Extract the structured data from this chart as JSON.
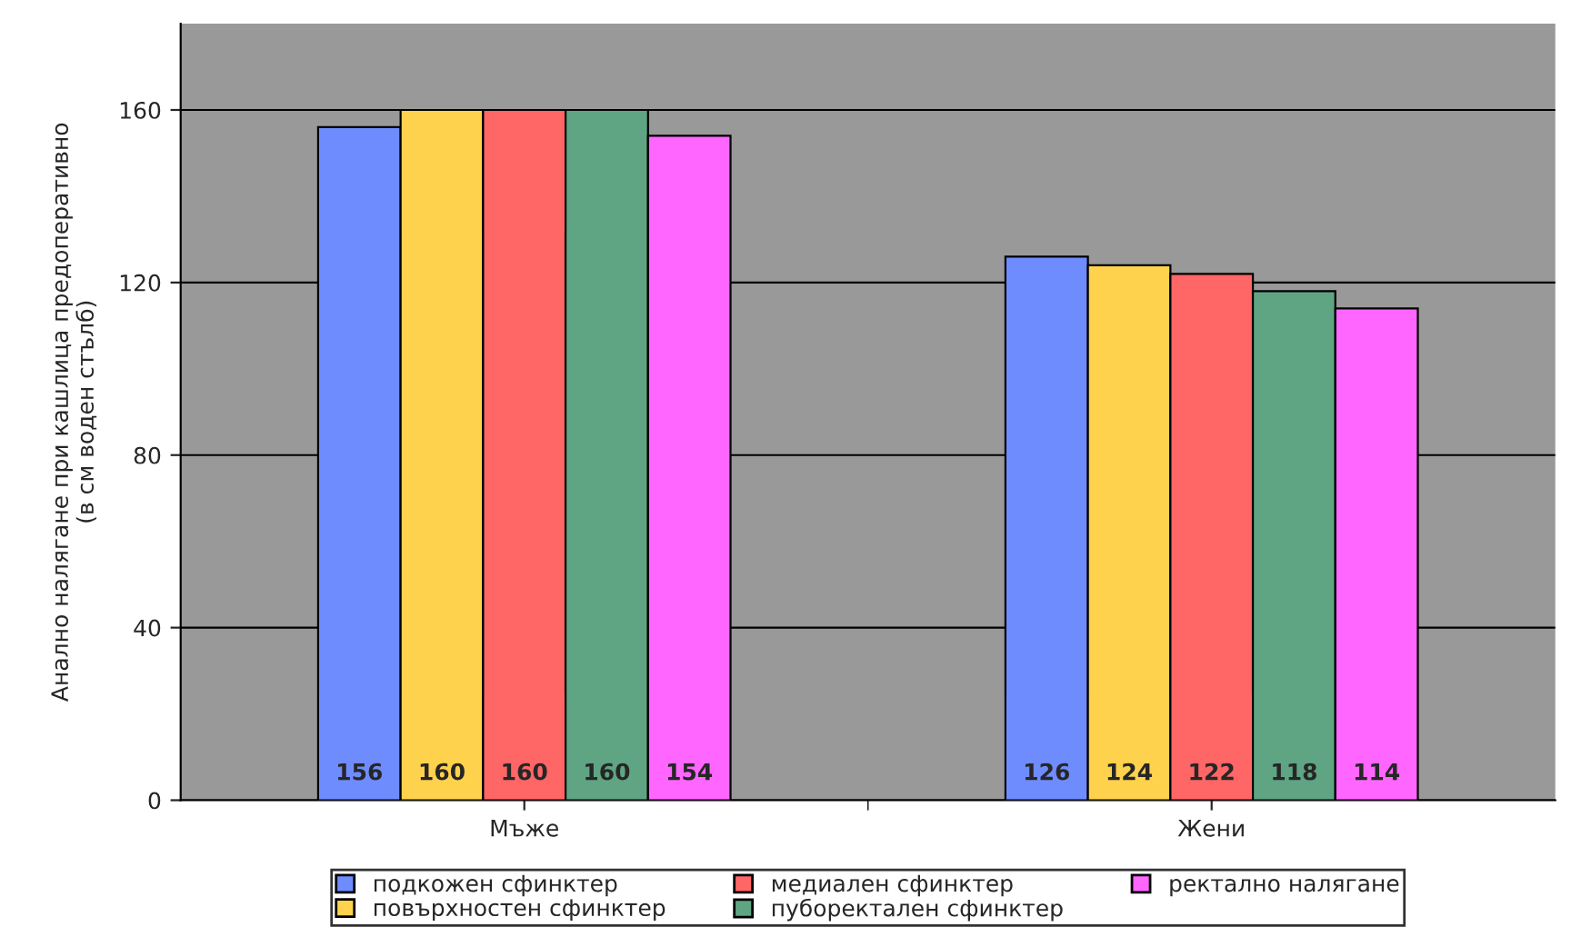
{
  "chart_data": {
    "type": "bar",
    "categories": [
      "Мъже",
      "Жени"
    ],
    "ylabel": "Анално налягане при кашлица предоперативно\n(в см воден стълб)",
    "series": [
      {
        "name": "подкожен сфинктер",
        "color": "#6f8cff",
        "values": [
          156,
          126
        ]
      },
      {
        "name": "повърхностен сфинктер",
        "color": "#ffd24d",
        "values": [
          160,
          124
        ]
      },
      {
        "name": "медиален сфинктер",
        "color": "#ff6666",
        "values": [
          160,
          122
        ]
      },
      {
        "name": "пуборектален сфинктер",
        "color": "#5fa584",
        "values": [
          160,
          118
        ]
      },
      {
        "name": "ректално налягане",
        "color": "#ff66ff",
        "values": [
          154,
          114
        ]
      }
    ],
    "ylim": [
      0,
      180
    ],
    "yticks": [
      0,
      40,
      80,
      120,
      160
    ],
    "grid": "y",
    "legend": "bottom",
    "data_labels": true
  }
}
